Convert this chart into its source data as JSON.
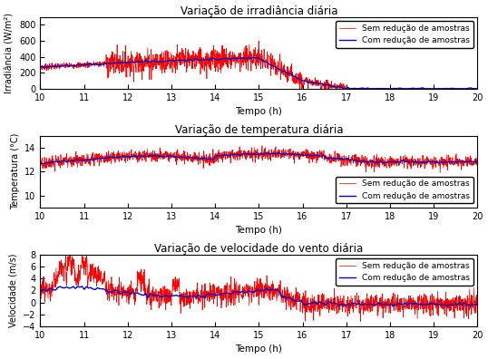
{
  "title1": "Variação de irradiância diária",
  "title2": "Variação de temperatura diária",
  "title3": "Variação de velocidade do vento diária",
  "xlabel": "Tempo (h)",
  "ylabel1": "Irradiância (W/m²)",
  "ylabel2": "Temperatura (°C)",
  "ylabel3": "Velocidade (m/s)",
  "legend1": "Sem redução de amostras",
  "legend2": "Com redução de amostras",
  "color_red": "#FF0000",
  "color_blue": "#0000CC",
  "xmin": 10,
  "xmax": 20,
  "xticks": [
    10,
    11,
    12,
    13,
    14,
    15,
    16,
    17,
    18,
    19,
    20
  ],
  "irr_ylim": [
    0,
    900
  ],
  "irr_yticks": [
    0,
    200,
    400,
    600,
    800
  ],
  "temp_ylim": [
    9,
    15
  ],
  "temp_yticks": [
    10,
    12,
    14
  ],
  "wind_ylim": [
    -4,
    8
  ],
  "wind_yticks": [
    -4,
    -2,
    0,
    2,
    4,
    6,
    8
  ]
}
